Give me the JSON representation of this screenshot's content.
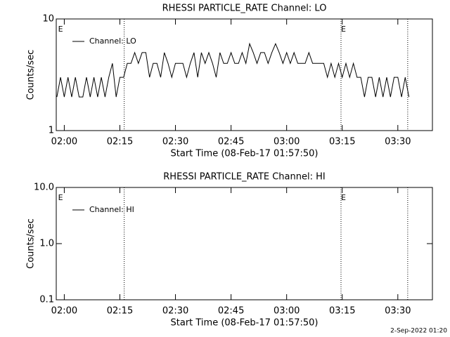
{
  "chart_data": [
    {
      "type": "line",
      "title": "RHESSI PARTICLE_RATE Channel: LO",
      "xlabel": "Start Time (08-Feb-17 01:57:50)",
      "ylabel": "Counts/sec",
      "ylog": true,
      "xlim": [
        "01:57:50",
        "03:39:20"
      ],
      "xticks": [
        "02:00",
        "02:15",
        "02:30",
        "02:45",
        "03:00",
        "03:15",
        "03:30"
      ],
      "ylim": [
        1,
        10
      ],
      "yticks": [
        1,
        10
      ],
      "event_lines": [
        "02:16:10",
        "03:14:40",
        "03:32:40"
      ],
      "event_labels": [
        {
          "x": "01:58:20",
          "label": "E"
        },
        {
          "x": "03:14:40",
          "label": "E"
        }
      ],
      "x": [
        "01:58",
        "01:59",
        "02:00",
        "02:01",
        "02:02",
        "02:03",
        "02:04",
        "02:05",
        "02:06",
        "02:07",
        "02:08",
        "02:09",
        "02:10",
        "02:11",
        "02:12",
        "02:13",
        "02:14",
        "02:15",
        "02:16",
        "02:17",
        "02:18",
        "02:19",
        "02:20",
        "02:21",
        "02:22",
        "02:23",
        "02:24",
        "02:25",
        "02:26",
        "02:27",
        "02:28",
        "02:29",
        "02:30",
        "02:31",
        "02:32",
        "02:33",
        "02:34",
        "02:35",
        "02:36",
        "02:37",
        "02:38",
        "02:39",
        "02:40",
        "02:41",
        "02:42",
        "02:43",
        "02:44",
        "02:45",
        "02:46",
        "02:47",
        "02:48",
        "02:49",
        "02:50",
        "02:51",
        "02:52",
        "02:53",
        "02:54",
        "02:55",
        "02:56",
        "02:57",
        "02:58",
        "02:59",
        "03:00",
        "03:01",
        "03:02",
        "03:03",
        "03:04",
        "03:05",
        "03:06",
        "03:07",
        "03:08",
        "03:09",
        "03:10",
        "03:11",
        "03:12",
        "03:13",
        "03:14",
        "03:15",
        "03:16",
        "03:17",
        "03:18",
        "03:19",
        "03:20",
        "03:21",
        "03:22",
        "03:23",
        "03:24",
        "03:25",
        "03:26",
        "03:27",
        "03:28",
        "03:29",
        "03:30",
        "03:31",
        "03:32",
        "03:33"
      ],
      "series": [
        {
          "name": "Channel: LO",
          "color": "#000000",
          "values": [
            2,
            3,
            2,
            3,
            2,
            3,
            2,
            2,
            3,
            2,
            3,
            2,
            3,
            2,
            3,
            4,
            2,
            3,
            3,
            4,
            4,
            5,
            4,
            5,
            5,
            3,
            4,
            4,
            3,
            5,
            4,
            3,
            4,
            4,
            4,
            3,
            4,
            5,
            3,
            5,
            4,
            5,
            4,
            3,
            5,
            4,
            4,
            5,
            4,
            4,
            5,
            4,
            6,
            5,
            4,
            5,
            5,
            4,
            5,
            6,
            5,
            4,
            5,
            4,
            5,
            4,
            4,
            4,
            5,
            4,
            4,
            4,
            4,
            3,
            4,
            3,
            4,
            3,
            4,
            3,
            4,
            3,
            3,
            2,
            3,
            3,
            2,
            3,
            2,
            3,
            2,
            3,
            3,
            2,
            3,
            2
          ]
        }
      ]
    },
    {
      "type": "line",
      "title": "RHESSI PARTICLE_RATE Channel: HI",
      "xlabel": "Start Time (08-Feb-17 01:57:50)",
      "ylabel": "Counts/sec",
      "ylog": true,
      "xlim": [
        "01:57:50",
        "03:39:20"
      ],
      "xticks": [
        "02:00",
        "02:15",
        "02:30",
        "02:45",
        "03:00",
        "03:15",
        "03:30"
      ],
      "ylim": [
        0.1,
        10
      ],
      "yticks": [
        0.1,
        {
          "value": 1,
          "label": "1.0"
        },
        {
          "value": 10,
          "label": "10.0"
        }
      ],
      "event_lines": [
        "02:16:10",
        "03:14:40",
        "03:32:40"
      ],
      "event_labels": [
        {
          "x": "01:58:20",
          "label": "E"
        },
        {
          "x": "03:14:40",
          "label": "E"
        }
      ],
      "x": [],
      "series": [
        {
          "name": "Channel: HI",
          "color": "#000000",
          "values": []
        }
      ]
    }
  ],
  "footer": "2-Sep-2022 01:20"
}
